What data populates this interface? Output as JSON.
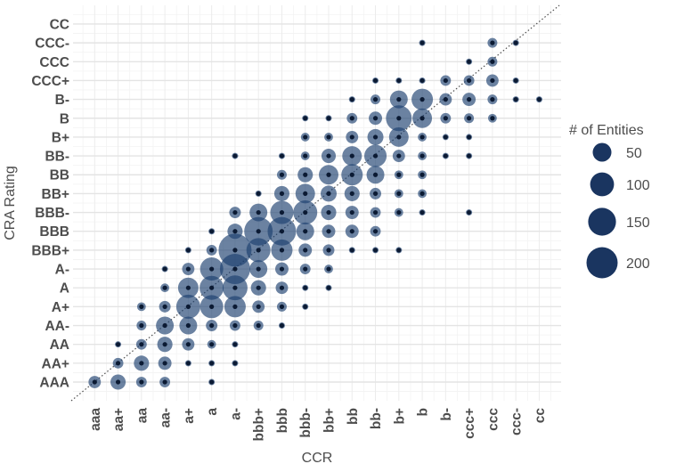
{
  "chart_data": {
    "type": "scatter",
    "subtype": "bubble",
    "title": "",
    "xlabel": "CCR",
    "ylabel": "CRA Rating",
    "x_categories": [
      "aaa",
      "aa+",
      "aa",
      "aa-",
      "a+",
      "a",
      "a-",
      "bbb+",
      "bbb",
      "bbb-",
      "bb+",
      "bb",
      "bb-",
      "b+",
      "b",
      "b-",
      "ccc+",
      "ccc",
      "ccc-",
      "cc"
    ],
    "y_categories": [
      "AAA",
      "AA+",
      "AA",
      "AA-",
      "A+",
      "A",
      "A-",
      "BBB+",
      "BBB",
      "BBB-",
      "BB+",
      "BB",
      "BB-",
      "B+",
      "B",
      "B-",
      "CCC+",
      "CCC",
      "CCC-",
      "CC"
    ],
    "size_legend": {
      "title": "# of Entities",
      "values": [
        50,
        100,
        150,
        200
      ],
      "position": "right"
    },
    "reference_line": "diagonal dotted (x = y)",
    "grid": true,
    "colors": {
      "bubble": "#1c3f6e",
      "bubble_opacity": 0.65,
      "dot": "#0b1a33",
      "legend_bubble": "#1a3560",
      "grid": "#e6e6e6",
      "text": "#4d4d4d"
    },
    "points": [
      {
        "x": "aaa",
        "y": "AAA",
        "n": 12
      },
      {
        "x": "aa+",
        "y": "AAA",
        "n": 26
      },
      {
        "x": "aa",
        "y": "AAA",
        "n": 6
      },
      {
        "x": "aa-",
        "y": "AAA",
        "n": 6
      },
      {
        "x": "a",
        "y": "AAA",
        "n": 1
      },
      {
        "x": "aa+",
        "y": "AA+",
        "n": 6
      },
      {
        "x": "aa",
        "y": "AA+",
        "n": 26
      },
      {
        "x": "aa-",
        "y": "AA+",
        "n": 16
      },
      {
        "x": "a+",
        "y": "AA+",
        "n": 1
      },
      {
        "x": "a",
        "y": "AA+",
        "n": 1
      },
      {
        "x": "a-",
        "y": "AA+",
        "n": 1
      },
      {
        "x": "aa+",
        "y": "AA",
        "n": 1
      },
      {
        "x": "aa",
        "y": "AA",
        "n": 6
      },
      {
        "x": "aa-",
        "y": "AA",
        "n": 26
      },
      {
        "x": "a+",
        "y": "AA",
        "n": 12
      },
      {
        "x": "a",
        "y": "AA",
        "n": 2
      },
      {
        "x": "a-",
        "y": "AA",
        "n": 1
      },
      {
        "x": "aa",
        "y": "AA-",
        "n": 4
      },
      {
        "x": "aa-",
        "y": "AA-",
        "n": 43
      },
      {
        "x": "a+",
        "y": "AA-",
        "n": 43
      },
      {
        "x": "a",
        "y": "AA-",
        "n": 9
      },
      {
        "x": "a-",
        "y": "AA-",
        "n": 6
      },
      {
        "x": "bbb+",
        "y": "AA-",
        "n": 4
      },
      {
        "x": "bbb",
        "y": "AA-",
        "n": 1
      },
      {
        "x": "aa",
        "y": "A+",
        "n": 2
      },
      {
        "x": "aa-",
        "y": "A+",
        "n": 9
      },
      {
        "x": "a+",
        "y": "A+",
        "n": 102
      },
      {
        "x": "a",
        "y": "A+",
        "n": 92
      },
      {
        "x": "a-",
        "y": "A+",
        "n": 74
      },
      {
        "x": "bbb+",
        "y": "A+",
        "n": 12
      },
      {
        "x": "bbb",
        "y": "A+",
        "n": 4
      },
      {
        "x": "bbb-",
        "y": "A+",
        "n": 1
      },
      {
        "x": "aa-",
        "y": "A",
        "n": 2
      },
      {
        "x": "a+",
        "y": "A",
        "n": 65
      },
      {
        "x": "a",
        "y": "A",
        "n": 102
      },
      {
        "x": "a-",
        "y": "A",
        "n": 112
      },
      {
        "x": "bbb+",
        "y": "A",
        "n": 26
      },
      {
        "x": "bbb",
        "y": "A",
        "n": 12
      },
      {
        "x": "bbb-",
        "y": "A",
        "n": 1
      },
      {
        "x": "bb+",
        "y": "A",
        "n": 1
      },
      {
        "x": "aa-",
        "y": "A-",
        "n": 1
      },
      {
        "x": "a+",
        "y": "A-",
        "n": 12
      },
      {
        "x": "a",
        "y": "A-",
        "n": 92
      },
      {
        "x": "a-",
        "y": "A-",
        "n": 186
      },
      {
        "x": "bbb+",
        "y": "A-",
        "n": 43
      },
      {
        "x": "bbb",
        "y": "A-",
        "n": 16
      },
      {
        "x": "bbb-",
        "y": "A-",
        "n": 6
      },
      {
        "x": "bb+",
        "y": "A-",
        "n": 2
      },
      {
        "x": "a+",
        "y": "BBB+",
        "n": 1
      },
      {
        "x": "a",
        "y": "BBB+",
        "n": 6
      },
      {
        "x": "a-",
        "y": "BBB+",
        "n": 230
      },
      {
        "x": "bbb+",
        "y": "BBB+",
        "n": 102
      },
      {
        "x": "bbb",
        "y": "BBB+",
        "n": 74
      },
      {
        "x": "bbb-",
        "y": "BBB+",
        "n": 16
      },
      {
        "x": "bb+",
        "y": "BBB+",
        "n": 9
      },
      {
        "x": "bb",
        "y": "BBB+",
        "n": 1
      },
      {
        "x": "bb-",
        "y": "BBB+",
        "n": 1
      },
      {
        "x": "b+",
        "y": "BBB+",
        "n": 1
      },
      {
        "x": "a",
        "y": "BBB",
        "n": 1
      },
      {
        "x": "a-",
        "y": "BBB",
        "n": 26
      },
      {
        "x": "bbb+",
        "y": "BBB",
        "n": 159
      },
      {
        "x": "bbb",
        "y": "BBB",
        "n": 159
      },
      {
        "x": "bbb-",
        "y": "BBB",
        "n": 43
      },
      {
        "x": "bb+",
        "y": "BBB",
        "n": 16
      },
      {
        "x": "bb",
        "y": "BBB",
        "n": 16
      },
      {
        "x": "bb-",
        "y": "BBB",
        "n": 6
      },
      {
        "x": "a-",
        "y": "BBB-",
        "n": 9
      },
      {
        "x": "bbb+",
        "y": "BBB-",
        "n": 43
      },
      {
        "x": "bbb",
        "y": "BBB-",
        "n": 92
      },
      {
        "x": "bbb-",
        "y": "BBB-",
        "n": 102
      },
      {
        "x": "bb+",
        "y": "BBB-",
        "n": 26
      },
      {
        "x": "bb",
        "y": "BBB-",
        "n": 16
      },
      {
        "x": "bb-",
        "y": "BBB-",
        "n": 6
      },
      {
        "x": "b+",
        "y": "BBB-",
        "n": 2
      },
      {
        "x": "b",
        "y": "BBB-",
        "n": 1
      },
      {
        "x": "ccc+",
        "y": "BBB-",
        "n": 1
      },
      {
        "x": "bbb+",
        "y": "BB+",
        "n": 1
      },
      {
        "x": "bbb",
        "y": "BB+",
        "n": 26
      },
      {
        "x": "bbb-",
        "y": "BB+",
        "n": 57
      },
      {
        "x": "bb+",
        "y": "BB+",
        "n": 31
      },
      {
        "x": "bb",
        "y": "BB+",
        "n": 26
      },
      {
        "x": "bb-",
        "y": "BB+",
        "n": 9
      },
      {
        "x": "b+",
        "y": "BB+",
        "n": 2
      },
      {
        "x": "b",
        "y": "BB+",
        "n": 2
      },
      {
        "x": "bbb",
        "y": "BB",
        "n": 4
      },
      {
        "x": "bbb-",
        "y": "BB",
        "n": 26
      },
      {
        "x": "bb+",
        "y": "BB",
        "n": 57
      },
      {
        "x": "bb",
        "y": "BB",
        "n": 74
      },
      {
        "x": "bb-",
        "y": "BB",
        "n": 43
      },
      {
        "x": "b+",
        "y": "BB",
        "n": 2
      },
      {
        "x": "b",
        "y": "BB",
        "n": 2
      },
      {
        "x": "a-",
        "y": "BB-",
        "n": 1
      },
      {
        "x": "bbb",
        "y": "BB-",
        "n": 1
      },
      {
        "x": "bbb-",
        "y": "BB-",
        "n": 2
      },
      {
        "x": "bb+",
        "y": "BB-",
        "n": 21
      },
      {
        "x": "bb",
        "y": "BB-",
        "n": 57
      },
      {
        "x": "bb-",
        "y": "BB-",
        "n": 83
      },
      {
        "x": "b+",
        "y": "BB-",
        "n": 12
      },
      {
        "x": "b",
        "y": "BB-",
        "n": 2
      },
      {
        "x": "b-",
        "y": "BB-",
        "n": 1
      },
      {
        "x": "ccc+",
        "y": "BB-",
        "n": 1
      },
      {
        "x": "bbb-",
        "y": "B+",
        "n": 2
      },
      {
        "x": "bb+",
        "y": "B+",
        "n": 2
      },
      {
        "x": "bb",
        "y": "B+",
        "n": 12
      },
      {
        "x": "bb-",
        "y": "B+",
        "n": 31
      },
      {
        "x": "b+",
        "y": "B+",
        "n": 57
      },
      {
        "x": "b",
        "y": "B+",
        "n": 2
      },
      {
        "x": "b-",
        "y": "B+",
        "n": 1
      },
      {
        "x": "ccc+",
        "y": "B+",
        "n": 1
      },
      {
        "x": "bbb-",
        "y": "B",
        "n": 1
      },
      {
        "x": "bb+",
        "y": "B",
        "n": 1
      },
      {
        "x": "bb",
        "y": "B",
        "n": 6
      },
      {
        "x": "bb-",
        "y": "B",
        "n": 16
      },
      {
        "x": "b+",
        "y": "B",
        "n": 123
      },
      {
        "x": "b",
        "y": "B",
        "n": 57
      },
      {
        "x": "b-",
        "y": "B",
        "n": 6
      },
      {
        "x": "ccc+",
        "y": "B",
        "n": 4
      },
      {
        "x": "ccc",
        "y": "B",
        "n": 2
      },
      {
        "x": "bb",
        "y": "B-",
        "n": 1
      },
      {
        "x": "bb-",
        "y": "B-",
        "n": 4
      },
      {
        "x": "b+",
        "y": "B-",
        "n": 43
      },
      {
        "x": "b",
        "y": "B-",
        "n": 74
      },
      {
        "x": "b-",
        "y": "B-",
        "n": 12
      },
      {
        "x": "ccc+",
        "y": "B-",
        "n": 16
      },
      {
        "x": "ccc",
        "y": "B-",
        "n": 4
      },
      {
        "x": "ccc-",
        "y": "B-",
        "n": 1
      },
      {
        "x": "cc",
        "y": "B-",
        "n": 1
      },
      {
        "x": "bb-",
        "y": "CCC+",
        "n": 1
      },
      {
        "x": "b+",
        "y": "CCC+",
        "n": 1
      },
      {
        "x": "b",
        "y": "CCC+",
        "n": 1
      },
      {
        "x": "b-",
        "y": "CCC+",
        "n": 6
      },
      {
        "x": "ccc+",
        "y": "CCC+",
        "n": 6
      },
      {
        "x": "ccc",
        "y": "CCC+",
        "n": 12
      },
      {
        "x": "ccc-",
        "y": "CCC+",
        "n": 1
      },
      {
        "x": "ccc+",
        "y": "CCC",
        "n": 1
      },
      {
        "x": "ccc",
        "y": "CCC",
        "n": 4
      },
      {
        "x": "b",
        "y": "CCC-",
        "n": 1
      },
      {
        "x": "ccc",
        "y": "CCC-",
        "n": 4
      },
      {
        "x": "ccc-",
        "y": "CCC-",
        "n": 1
      }
    ]
  },
  "axes": {
    "x_title": "CCR",
    "y_title": "CRA Rating"
  },
  "legend": {
    "title": "# of Entities",
    "items": [
      {
        "label": "50",
        "value": 50
      },
      {
        "label": "100",
        "value": 100
      },
      {
        "label": "150",
        "value": 150
      },
      {
        "label": "200",
        "value": 200
      }
    ]
  }
}
